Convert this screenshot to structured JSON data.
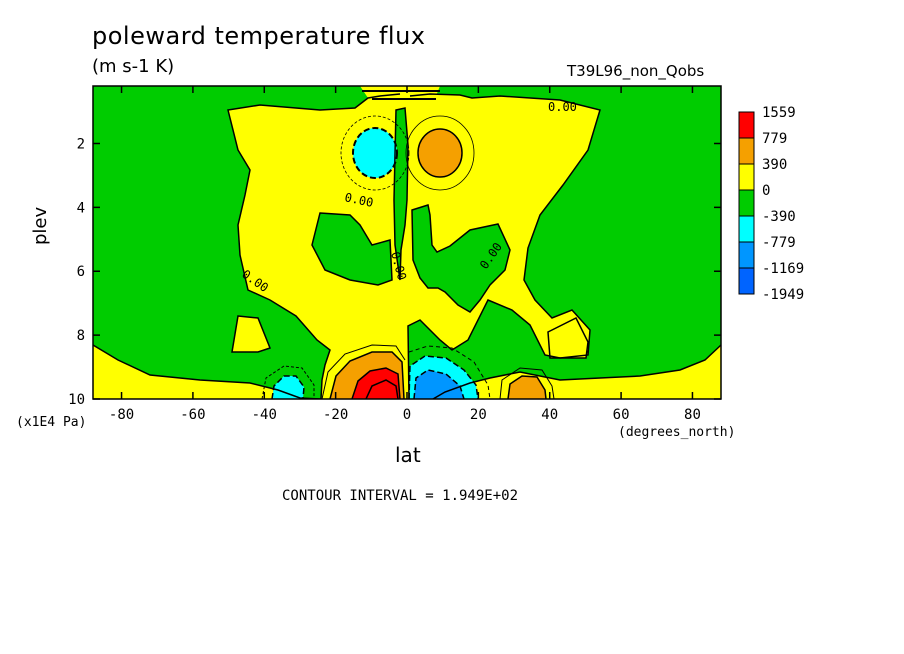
{
  "chart_data": {
    "type": "contour",
    "title": "poleward temperature flux",
    "units": "(m s-1 K)",
    "run_label": "T39L96_non_Qobs",
    "xlabel": "lat",
    "x_units": "(degrees_north)",
    "ylabel": "plev",
    "y_units": "(x1E4 Pa)",
    "xlim": [
      -88,
      88
    ],
    "ylim": [
      10,
      0.2
    ],
    "x_ticks": [
      -80,
      -60,
      -40,
      -20,
      0,
      20,
      40,
      60,
      80
    ],
    "x_tick_labels": [
      "-80",
      "-60",
      "-40",
      "-20",
      "0",
      "20",
      "40",
      "60",
      "80"
    ],
    "y_ticks": [
      2,
      4,
      6,
      8,
      10
    ],
    "y_tick_labels": [
      "2",
      "4",
      "6",
      "8",
      "10"
    ],
    "contour_interval_text": "CONTOUR INTERVAL = 1.949E+02",
    "contour_labels": [
      "0.00",
      "0.00",
      "0.00",
      "0.00",
      "0.00"
    ],
    "legend": {
      "levels": [
        "1559",
        "779",
        "390",
        "0",
        "-390",
        "-779",
        "-1169",
        "-1949"
      ],
      "colors": [
        "#ff0000",
        "#f5a000",
        "#ffff00",
        "#00cc00",
        "#00ffff",
        "#0096ff",
        "#0064ff"
      ]
    },
    "features": [
      {
        "kind": "max",
        "lat": -7,
        "plev": 9.4,
        "value": 1559
      },
      {
        "kind": "min",
        "lat": 9,
        "plev": 9.4,
        "value": -1169
      },
      {
        "kind": "max",
        "lat": 10,
        "plev": 2.2,
        "value": 779
      },
      {
        "kind": "min",
        "lat": -10,
        "plev": 2.2,
        "value": -779
      },
      {
        "kind": "min",
        "lat": -33,
        "plev": 9.6,
        "value": -779
      },
      {
        "kind": "max",
        "lat": 33,
        "plev": 9.6,
        "value": 779
      }
    ]
  }
}
